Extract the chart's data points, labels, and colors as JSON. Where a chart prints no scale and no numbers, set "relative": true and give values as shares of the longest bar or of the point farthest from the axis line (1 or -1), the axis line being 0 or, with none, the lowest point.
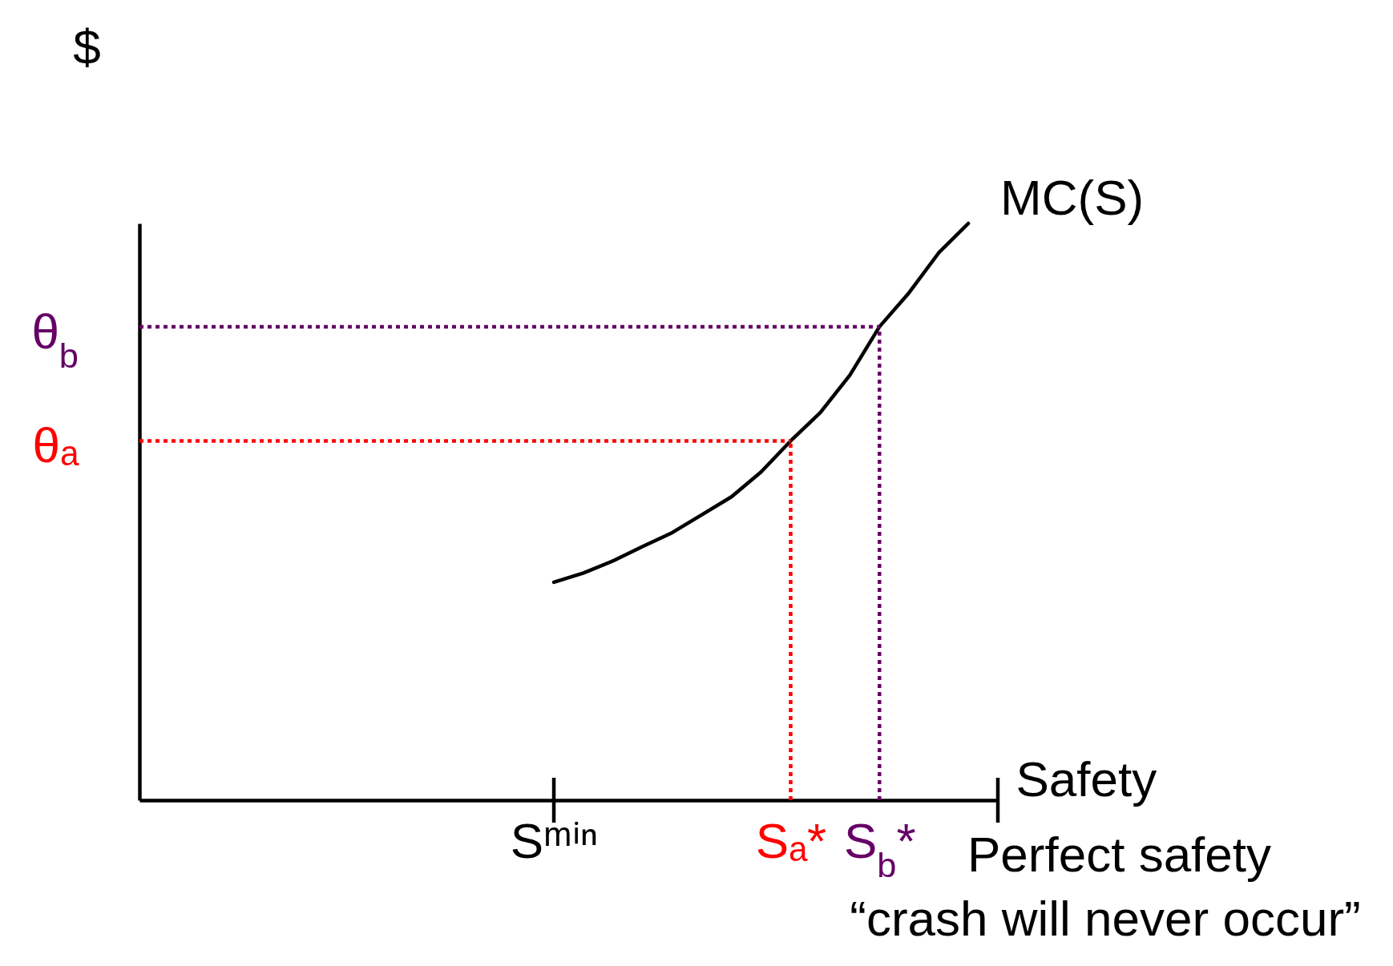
{
  "chart_data": {
    "type": "line",
    "relative": true,
    "ylabel": "$",
    "xlabel": "Safety",
    "categories": [
      null,
      null,
      null,
      null,
      null,
      null,
      null,
      null,
      null,
      null,
      null,
      null,
      null,
      null,
      "Sᵐⁱⁿ",
      null,
      null,
      null,
      null,
      null,
      null,
      null,
      "Sₐ*",
      null,
      null,
      "S$_{b}$*",
      null,
      null,
      null,
      null
    ],
    "annotations": [
      "Perfect safety",
      "“crash will never occur”"
    ],
    "series": [
      {
        "name": "MC(S)",
        "color": "#000000",
        "line_style": "solid",
        "values": [
          null,
          null,
          null,
          null,
          null,
          null,
          null,
          null,
          null,
          null,
          null,
          null,
          null,
          null,
          0.378,
          0.394,
          0.415,
          0.44,
          0.464,
          0.495,
          0.526,
          0.569,
          0.623,
          0.672,
          0.737,
          0.821,
          0.88,
          0.949,
          1,
          null
        ]
      },
      {
        "name": "θₐ",
        "color": "#ff0000",
        "line_style": "dotted",
        "values": [
          0.623,
          0.623,
          0.623,
          0.623,
          0.623,
          0.623,
          0.623,
          0.623,
          0.623,
          0.623,
          0.623,
          0.623,
          0.623,
          0.623,
          0.623,
          0.623,
          0.623,
          0.623,
          0.623,
          0.623,
          0.623,
          0.623,
          0.623,
          null,
          null,
          null,
          null,
          null,
          null,
          null
        ]
      },
      {
        "name": "θ$_{b}$",
        "color": "#660066",
        "line_style": "dotted",
        "values": [
          0.821,
          0.821,
          0.821,
          0.821,
          0.821,
          0.821,
          0.821,
          0.821,
          0.821,
          0.821,
          0.821,
          0.821,
          0.821,
          0.821,
          0.821,
          0.821,
          0.821,
          0.821,
          0.821,
          0.821,
          0.821,
          0.821,
          0.821,
          0.821,
          0.821,
          0.821,
          null,
          null,
          null,
          null
        ]
      }
    ]
  }
}
